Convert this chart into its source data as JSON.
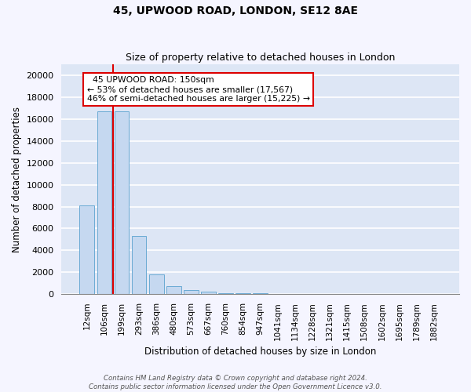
{
  "title": "45, UPWOOD ROAD, LONDON, SE12 8AE",
  "subtitle": "Size of property relative to detached houses in London",
  "xlabel": "Distribution of detached houses by size in London",
  "ylabel": "Number of detached properties",
  "categories": [
    "12sqm",
    "106sqm",
    "199sqm",
    "293sqm",
    "386sqm",
    "480sqm",
    "573sqm",
    "667sqm",
    "760sqm",
    "854sqm",
    "947sqm",
    "1041sqm",
    "1134sqm",
    "1228sqm",
    "1321sqm",
    "1415sqm",
    "1508sqm",
    "1602sqm",
    "1695sqm",
    "1789sqm",
    "1882sqm"
  ],
  "values": [
    8100,
    16700,
    16700,
    5300,
    1800,
    700,
    350,
    200,
    120,
    80,
    55,
    40,
    30,
    22,
    15,
    12,
    9,
    7,
    5,
    4,
    3
  ],
  "bar_color": "#c5d8f0",
  "bar_edge_color": "#6aaad4",
  "red_line_x": 1.5,
  "annotation_line1": "  45 UPWOOD ROAD: 150sqm",
  "annotation_line2": "← 53% of detached houses are smaller (17,567)",
  "annotation_line3": "46% of semi-detached houses are larger (15,225) →",
  "annotation_box_facecolor": "#ffffff",
  "annotation_box_edgecolor": "#dd0000",
  "red_line_color": "#dd0000",
  "footer_line1": "Contains HM Land Registry data © Crown copyright and database right 2024.",
  "footer_line2": "Contains public sector information licensed under the Open Government Licence v3.0.",
  "yticks": [
    0,
    2000,
    4000,
    6000,
    8000,
    10000,
    12000,
    14000,
    16000,
    18000,
    20000
  ],
  "ylim": [
    0,
    21000
  ],
  "background_color": "#e8eef8",
  "plot_bg_color": "#dde6f5",
  "grid_color": "#ffffff",
  "fig_bg_color": "#f5f5ff"
}
